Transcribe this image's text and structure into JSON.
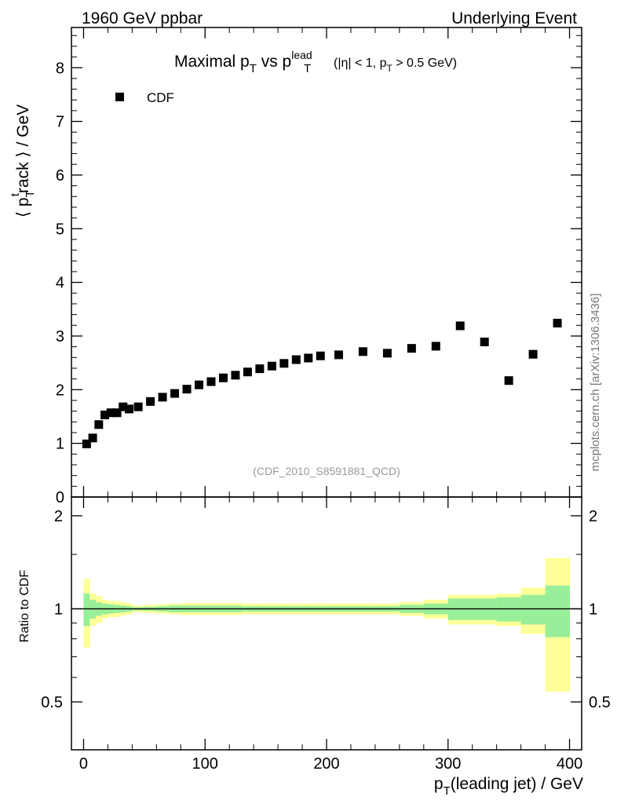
{
  "header": {
    "left": "1960 GeV ppbar",
    "right": "Underlying Event"
  },
  "chart_data": [
    {
      "type": "scatter",
      "panel": "main",
      "title": "Maximal p_T vs p_T^lead (|η| < 1, p_T > 0.5 GeV)",
      "title_parts": {
        "a": "Maximal p",
        "a_sub": "T",
        "b": " vs p",
        "b_sub": "T",
        "b_sup": "lead",
        "c_pre": "(|η| < 1, p",
        "c_sub": "T",
        "c_post": " > 0.5 GeV)"
      },
      "ylabel": "⟨ p_T^track ⟩ / GeV",
      "ylabel_parts": {
        "pre": "⟨ p",
        "sub": "T",
        "sup": "t",
        "mid": "rack ⟩ / GeV"
      },
      "xlim": [
        -10,
        410
      ],
      "ylim": [
        0,
        8.75
      ],
      "y_ticks": [
        0,
        1,
        2,
        3,
        4,
        5,
        6,
        7,
        8
      ],
      "y_tick_labels": [
        "0",
        "1",
        "2",
        "3",
        "4",
        "5",
        "6",
        "7",
        "8"
      ],
      "legend": {
        "position": "top-left",
        "entries": [
          "CDF"
        ]
      },
      "watermark": "(CDF_2010_S8591881_QCD)",
      "side_label": "mcplots.cern.ch [arXiv:1306.3436]",
      "series": [
        {
          "name": "CDF",
          "color": "#000000",
          "marker": "square",
          "x": [
            2.5,
            7.5,
            12.5,
            17.5,
            22.5,
            27.5,
            32.5,
            37.5,
            45,
            55,
            65,
            75,
            85,
            95,
            105,
            115,
            125,
            135,
            145,
            155,
            165,
            175,
            185,
            195,
            210,
            230,
            250,
            270,
            290,
            310,
            330,
            350,
            370,
            390
          ],
          "y": [
            0.99,
            1.1,
            1.35,
            1.53,
            1.57,
            1.57,
            1.68,
            1.64,
            1.68,
            1.78,
            1.86,
            1.93,
            2.01,
            2.09,
            2.15,
            2.22,
            2.27,
            2.33,
            2.39,
            2.44,
            2.49,
            2.56,
            2.59,
            2.63,
            2.65,
            2.71,
            2.68,
            2.77,
            2.81,
            3.19,
            2.89,
            2.17,
            2.66,
            3.24
          ]
        }
      ]
    },
    {
      "type": "area",
      "panel": "ratio",
      "ylabel": "Ratio to CDF",
      "xlabel": "p_T(leading jet) / GeV",
      "xlabel_parts": {
        "pre": "p",
        "sub": "T",
        "post": "(leading jet) / GeV"
      },
      "xlim": [
        -10,
        410
      ],
      "ylim": [
        0.35,
        2.3
      ],
      "x_ticks": [
        0,
        100,
        200,
        300,
        400
      ],
      "x_tick_labels": [
        "0",
        "100",
        "200",
        "300",
        "400"
      ],
      "y_ticks": [
        0.5,
        1,
        2
      ],
      "y_tick_labels": [
        "0.5",
        "1",
        "2"
      ],
      "colors": {
        "outer_band": "#ffff99",
        "inner_band": "#99ee99",
        "line": "#000000"
      },
      "bin_edges": [
        0,
        5,
        10,
        15,
        20,
        25,
        30,
        35,
        40,
        50,
        60,
        70,
        80,
        90,
        100,
        110,
        120,
        130,
        140,
        150,
        160,
        170,
        180,
        190,
        200,
        220,
        240,
        260,
        280,
        300,
        320,
        340,
        360,
        380,
        400
      ],
      "outer_half_width": [
        0.25,
        0.12,
        0.1,
        0.07,
        0.06,
        0.06,
        0.05,
        0.04,
        0.025,
        0.03,
        0.035,
        0.04,
        0.045,
        0.045,
        0.045,
        0.045,
        0.045,
        0.04,
        0.04,
        0.04,
        0.04,
        0.04,
        0.04,
        0.04,
        0.04,
        0.04,
        0.04,
        0.05,
        0.07,
        0.11,
        0.11,
        0.12,
        0.17,
        0.46
      ],
      "inner_half_width": [
        0.12,
        0.07,
        0.05,
        0.04,
        0.035,
        0.03,
        0.025,
        0.02,
        0.012,
        0.015,
        0.02,
        0.025,
        0.025,
        0.025,
        0.025,
        0.025,
        0.025,
        0.02,
        0.02,
        0.02,
        0.02,
        0.02,
        0.02,
        0.02,
        0.02,
        0.02,
        0.02,
        0.03,
        0.04,
        0.08,
        0.08,
        0.09,
        0.11,
        0.19
      ],
      "reference": 1
    }
  ]
}
